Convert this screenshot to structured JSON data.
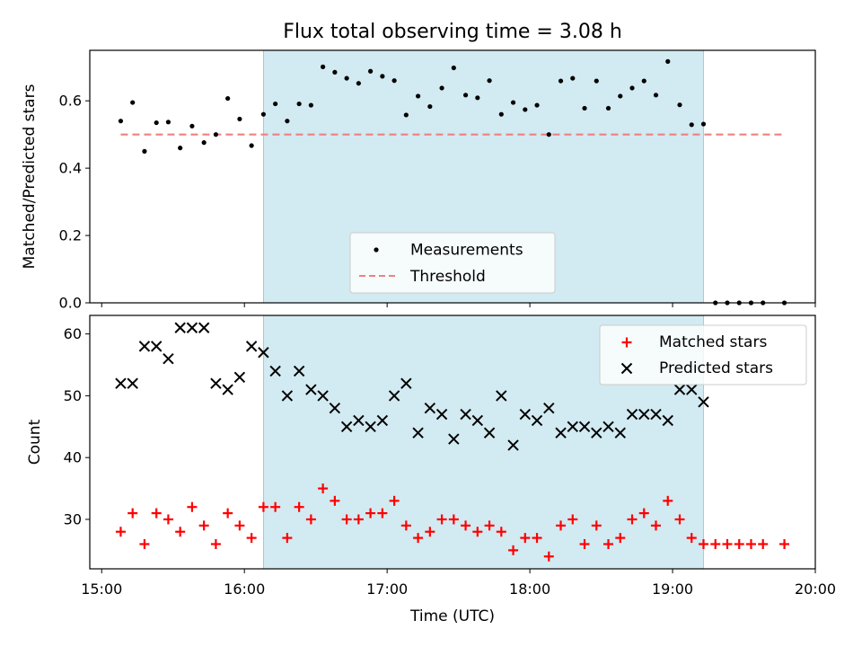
{
  "colors": {
    "observing_window": "#add8e6",
    "measurements": "#000000",
    "threshold": "#f08080",
    "matched": "#ff0000",
    "predicted": "#000000"
  },
  "chart_data": [
    {
      "type": "scatter",
      "title": "Flux total observing time = 3.08 h",
      "xlabel": "",
      "ylabel": "Matched/Predicted stars",
      "xlim": [
        "14:55",
        "20:00"
      ],
      "ylim": [
        0,
        0.75
      ],
      "yticks": [
        "0.0",
        "0.2",
        "0.4",
        "0.6"
      ],
      "observing_window": [
        "16:08",
        "19:13"
      ],
      "legend": {
        "position": "lower-center",
        "entries": [
          "Measurements",
          "Threshold"
        ]
      },
      "threshold": {
        "name": "Threshold",
        "y": 0.5,
        "x_range": [
          "15:08",
          "19:47"
        ]
      },
      "series": [
        {
          "name": "Measurements",
          "marker": "dot",
          "points": [
            [
              "15:08",
              0.54
            ],
            [
              "15:13",
              0.595
            ],
            [
              "15:18",
              0.45
            ],
            [
              "15:23",
              0.535
            ],
            [
              "15:28",
              0.537
            ],
            [
              "15:33",
              0.46
            ],
            [
              "15:38",
              0.525
            ],
            [
              "15:43",
              0.476
            ],
            [
              "15:48",
              0.5
            ],
            [
              "15:53",
              0.607
            ],
            [
              "15:58",
              0.546
            ],
            [
              "16:03",
              0.467
            ],
            [
              "16:08",
              0.56
            ],
            [
              "16:13",
              0.591
            ],
            [
              "16:18",
              0.54
            ],
            [
              "16:23",
              0.591
            ],
            [
              "16:28",
              0.587
            ],
            [
              "16:33",
              0.701
            ],
            [
              "16:38",
              0.685
            ],
            [
              "16:43",
              0.667
            ],
            [
              "16:48",
              0.652
            ],
            [
              "16:53",
              0.688
            ],
            [
              "16:58",
              0.673
            ],
            [
              "17:03",
              0.66
            ],
            [
              "17:08",
              0.558
            ],
            [
              "17:13",
              0.614
            ],
            [
              "17:18",
              0.583
            ],
            [
              "17:23",
              0.638
            ],
            [
              "17:28",
              0.698
            ],
            [
              "17:33",
              0.617
            ],
            [
              "17:38",
              0.609
            ],
            [
              "17:43",
              0.66
            ],
            [
              "17:48",
              0.56
            ],
            [
              "17:53",
              0.595
            ],
            [
              "17:58",
              0.574
            ],
            [
              "18:03",
              0.587
            ],
            [
              "18:08",
              0.5
            ],
            [
              "18:13",
              0.659
            ],
            [
              "18:18",
              0.667
            ],
            [
              "18:23",
              0.578
            ],
            [
              "18:28",
              0.659
            ],
            [
              "18:33",
              0.578
            ],
            [
              "18:38",
              0.614
            ],
            [
              "18:43",
              0.638
            ],
            [
              "18:48",
              0.659
            ],
            [
              "18:53",
              0.617
            ],
            [
              "18:58",
              0.717
            ],
            [
              "19:03",
              0.588
            ],
            [
              "19:08",
              0.529
            ],
            [
              "19:13",
              0.531
            ],
            [
              "19:18",
              0.0
            ],
            [
              "19:23",
              0.0
            ],
            [
              "19:28",
              0.0
            ],
            [
              "19:33",
              0.0
            ],
            [
              "19:38",
              0.0
            ],
            [
              "19:47",
              0.0
            ]
          ]
        }
      ]
    },
    {
      "type": "scatter",
      "title": "",
      "xlabel": "Time (UTC)",
      "ylabel": "Count",
      "xlim": [
        "14:55",
        "20:00"
      ],
      "ylim": [
        22,
        63
      ],
      "yticks": [
        "30",
        "40",
        "50",
        "60"
      ],
      "xticks": [
        "15:00",
        "16:00",
        "17:00",
        "18:00",
        "19:00",
        "20:00"
      ],
      "observing_window": [
        "16:08",
        "19:13"
      ],
      "legend": {
        "position": "upper-right",
        "entries": [
          "Matched stars",
          "Predicted stars"
        ]
      },
      "series": [
        {
          "name": "Matched stars",
          "marker": "plus",
          "points": [
            [
              "15:08",
              28
            ],
            [
              "15:13",
              31
            ],
            [
              "15:18",
              26
            ],
            [
              "15:23",
              31
            ],
            [
              "15:28",
              30
            ],
            [
              "15:33",
              28
            ],
            [
              "15:38",
              32
            ],
            [
              "15:43",
              29
            ],
            [
              "15:48",
              26
            ],
            [
              "15:53",
              31
            ],
            [
              "15:58",
              29
            ],
            [
              "16:03",
              27
            ],
            [
              "16:08",
              32
            ],
            [
              "16:13",
              32
            ],
            [
              "16:18",
              27
            ],
            [
              "16:23",
              32
            ],
            [
              "16:28",
              30
            ],
            [
              "16:33",
              35
            ],
            [
              "16:38",
              33
            ],
            [
              "16:43",
              30
            ],
            [
              "16:48",
              30
            ],
            [
              "16:53",
              31
            ],
            [
              "16:58",
              31
            ],
            [
              "17:03",
              33
            ],
            [
              "17:08",
              29
            ],
            [
              "17:13",
              27
            ],
            [
              "17:18",
              28
            ],
            [
              "17:23",
              30
            ],
            [
              "17:28",
              30
            ],
            [
              "17:33",
              29
            ],
            [
              "17:38",
              28
            ],
            [
              "17:43",
              29
            ],
            [
              "17:48",
              28
            ],
            [
              "17:53",
              25
            ],
            [
              "17:58",
              27
            ],
            [
              "18:03",
              27
            ],
            [
              "18:08",
              24
            ],
            [
              "18:13",
              29
            ],
            [
              "18:18",
              30
            ],
            [
              "18:23",
              26
            ],
            [
              "18:28",
              29
            ],
            [
              "18:33",
              26
            ],
            [
              "18:38",
              27
            ],
            [
              "18:43",
              30
            ],
            [
              "18:48",
              31
            ],
            [
              "18:53",
              29
            ],
            [
              "18:58",
              33
            ],
            [
              "19:03",
              30
            ],
            [
              "19:08",
              27
            ],
            [
              "19:13",
              26
            ],
            [
              "19:18",
              26
            ],
            [
              "19:23",
              26
            ],
            [
              "19:28",
              26
            ],
            [
              "19:33",
              26
            ],
            [
              "19:38",
              26
            ],
            [
              "19:47",
              26
            ]
          ]
        },
        {
          "name": "Predicted stars",
          "marker": "x",
          "points": [
            [
              "15:08",
              52
            ],
            [
              "15:13",
              52
            ],
            [
              "15:18",
              58
            ],
            [
              "15:23",
              58
            ],
            [
              "15:28",
              56
            ],
            [
              "15:33",
              61
            ],
            [
              "15:38",
              61
            ],
            [
              "15:43",
              61
            ],
            [
              "15:48",
              52
            ],
            [
              "15:53",
              51
            ],
            [
              "15:58",
              53
            ],
            [
              "16:03",
              58
            ],
            [
              "16:08",
              57
            ],
            [
              "16:13",
              54
            ],
            [
              "16:18",
              50
            ],
            [
              "16:23",
              54
            ],
            [
              "16:28",
              51
            ],
            [
              "16:33",
              50
            ],
            [
              "16:38",
              48
            ],
            [
              "16:43",
              45
            ],
            [
              "16:48",
              46
            ],
            [
              "16:53",
              45
            ],
            [
              "16:58",
              46
            ],
            [
              "17:03",
              50
            ],
            [
              "17:08",
              52
            ],
            [
              "17:13",
              44
            ],
            [
              "17:18",
              48
            ],
            [
              "17:23",
              47
            ],
            [
              "17:28",
              43
            ],
            [
              "17:33",
              47
            ],
            [
              "17:38",
              46
            ],
            [
              "17:43",
              44
            ],
            [
              "17:48",
              50
            ],
            [
              "17:53",
              42
            ],
            [
              "17:58",
              47
            ],
            [
              "18:03",
              46
            ],
            [
              "18:08",
              48
            ],
            [
              "18:13",
              44
            ],
            [
              "18:18",
              45
            ],
            [
              "18:23",
              45
            ],
            [
              "18:28",
              44
            ],
            [
              "18:33",
              45
            ],
            [
              "18:38",
              44
            ],
            [
              "18:43",
              47
            ],
            [
              "18:48",
              47
            ],
            [
              "18:53",
              47
            ],
            [
              "18:58",
              46
            ],
            [
              "19:03",
              51
            ],
            [
              "19:08",
              51
            ],
            [
              "19:13",
              49
            ]
          ]
        }
      ]
    }
  ]
}
